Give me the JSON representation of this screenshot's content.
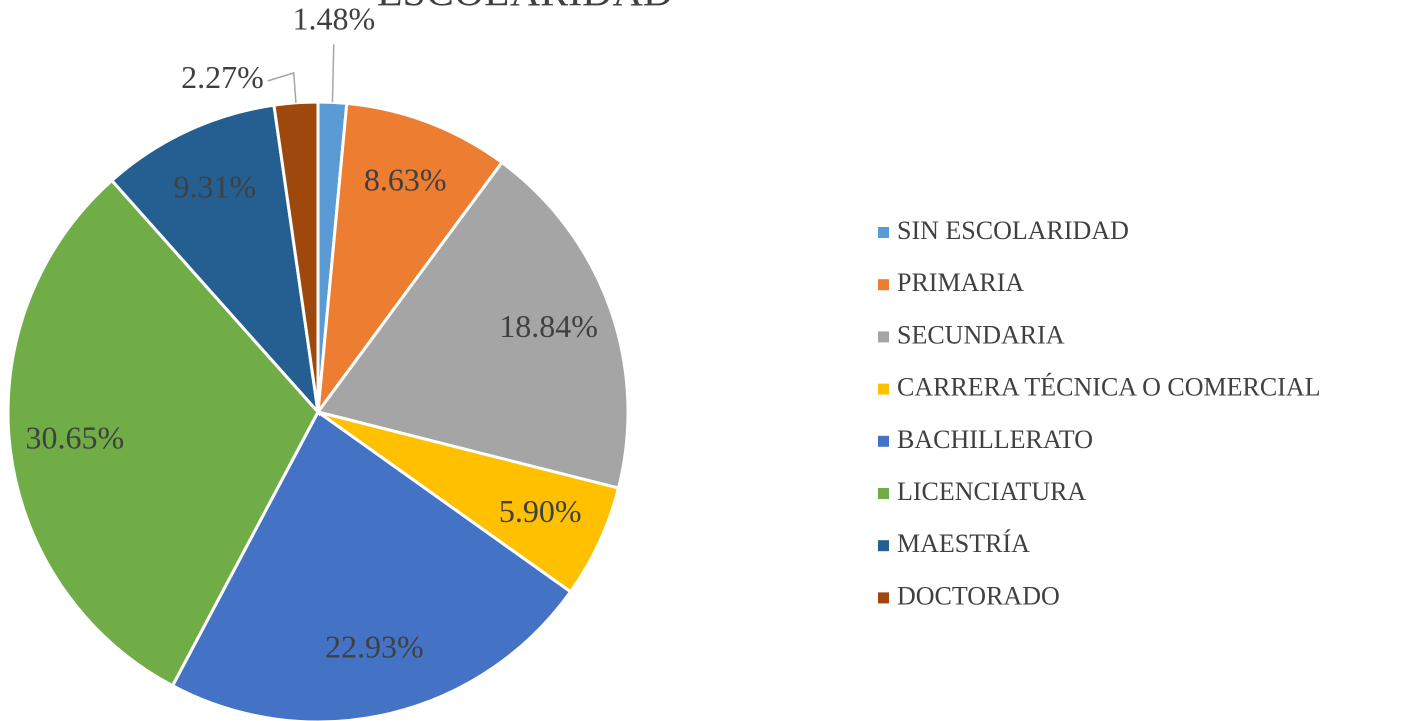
{
  "chart_data": {
    "type": "pie",
    "title": "ESCOLARIDAD",
    "categories": [
      "SIN ESCOLARIDAD",
      "PRIMARIA",
      "SECUNDARIA",
      "CARRERA TÉCNICA O COMERCIAL",
      "BACHILLERATO",
      "LICENCIATURA",
      "MAESTRÍA",
      "DOCTORADO"
    ],
    "values": [
      1.48,
      8.63,
      18.84,
      5.9,
      22.93,
      30.65,
      9.31,
      2.27
    ],
    "value_labels": [
      "1.48%",
      "8.63%",
      "18.84%",
      "5.90%",
      "22.93%",
      "30.65%",
      "9.31%",
      "2.27%"
    ],
    "colors": [
      "#5b9bd5",
      "#ed7d31",
      "#a5a5a5",
      "#ffc000",
      "#4472c4",
      "#70ad47",
      "#255e91",
      "#9e480e"
    ],
    "legend": "right"
  }
}
